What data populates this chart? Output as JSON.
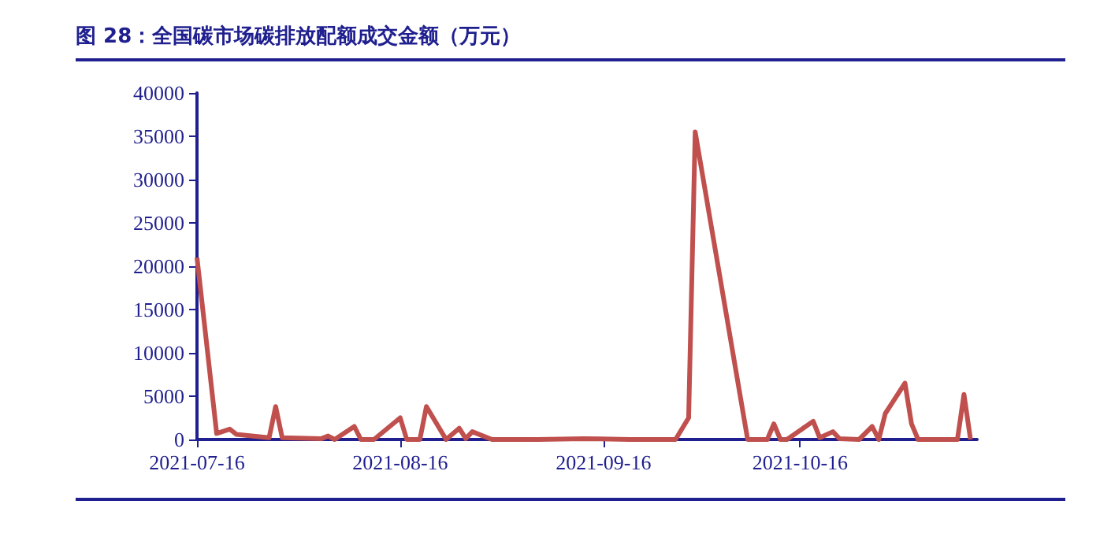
{
  "chart_data": {
    "type": "line",
    "title": "图 28：全国碳市场碳排放配额成交金额（万元）",
    "x": [
      "2021-07-16",
      "2021-07-19",
      "2021-07-21",
      "2021-07-22",
      "2021-07-27",
      "2021-07-28",
      "2021-07-29",
      "2021-08-04",
      "2021-08-05",
      "2021-08-06",
      "2021-08-09",
      "2021-08-10",
      "2021-08-12",
      "2021-08-16",
      "2021-08-17",
      "2021-08-19",
      "2021-08-20",
      "2021-08-23",
      "2021-08-25",
      "2021-08-26",
      "2021-08-27",
      "2021-08-30",
      "2021-09-06",
      "2021-09-13",
      "2021-09-20",
      "2021-09-27",
      "2021-09-29",
      "2021-09-30",
      "2021-10-08",
      "2021-10-11",
      "2021-10-12",
      "2021-10-13",
      "2021-10-14",
      "2021-10-18",
      "2021-10-19",
      "2021-10-21",
      "2021-10-22",
      "2021-10-25",
      "2021-10-27",
      "2021-10-28",
      "2021-10-29",
      "2021-11-01",
      "2021-11-02",
      "2021-11-03",
      "2021-11-09",
      "2021-11-10",
      "2021-11-11"
    ],
    "series": [
      {
        "color": "#c0504d",
        "values": [
          21000,
          700,
          1200,
          600,
          200,
          3800,
          200,
          100,
          400,
          0,
          1500,
          0,
          0,
          2500,
          0,
          0,
          3800,
          0,
          1300,
          100,
          900,
          0,
          0,
          100,
          0,
          0,
          2500,
          35500,
          0,
          0,
          1800,
          0,
          0,
          2100,
          200,
          900,
          100,
          0,
          1500,
          0,
          3000,
          6500,
          1800,
          0,
          0,
          5200,
          0
        ]
      }
    ],
    "xlim": [
      "2021-07-16",
      "2021-11-12"
    ],
    "xticks": [
      "2021-07-16",
      "2021-08-16",
      "2021-09-16",
      "2021-10-16"
    ],
    "ylim": [
      0,
      40000
    ],
    "yticks": [
      0,
      5000,
      10000,
      15000,
      20000,
      25000,
      30000,
      35000,
      40000
    ],
    "grid": false,
    "marker": "none",
    "line_style": "solid"
  }
}
